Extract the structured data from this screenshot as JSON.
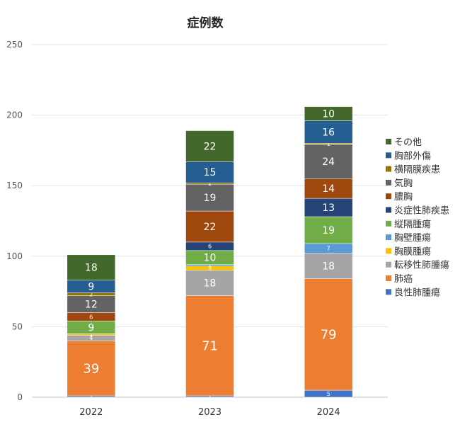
{
  "chart_data": {
    "type": "bar",
    "stacked": true,
    "title": "症例数",
    "categories": [
      "2022",
      "2023",
      "2024"
    ],
    "ylim": [
      0,
      250
    ],
    "yticks": [
      0,
      50,
      100,
      150,
      200,
      250
    ],
    "grid": true,
    "legend_position": "right",
    "series": [
      {
        "name": "良性肺腫瘍",
        "values": [
          1,
          1,
          5
        ],
        "color": "#4472c4"
      },
      {
        "name": "肺癌",
        "values": [
          39,
          71,
          79
        ],
        "color": "#ed7d31"
      },
      {
        "name": "転移性肺腫瘍",
        "values": [
          4,
          18,
          18
        ],
        "color": "#a5a5a5"
      },
      {
        "name": "胸膜腫瘍",
        "values": [
          1,
          3,
          0
        ],
        "color": "#ffc000"
      },
      {
        "name": "胸壁腫瘍",
        "values": [
          0,
          1,
          7
        ],
        "color": "#5b9bd5"
      },
      {
        "name": "縦隔腫瘍",
        "values": [
          9,
          10,
          19
        ],
        "color": "#70ad47"
      },
      {
        "name": "炎症性肺疾患",
        "values": [
          0,
          6,
          13
        ],
        "color": "#264478"
      },
      {
        "name": "膿胸",
        "values": [
          6,
          22,
          14
        ],
        "color": "#9e480e"
      },
      {
        "name": "気胸",
        "values": [
          12,
          19,
          24
        ],
        "color": "#636363"
      },
      {
        "name": "横隔膜疾患",
        "values": [
          2,
          1,
          1
        ],
        "color": "#997300"
      },
      {
        "name": "胸部外傷",
        "values": [
          9,
          15,
          16
        ],
        "color": "#255e91"
      },
      {
        "name": "その他",
        "values": [
          18,
          22,
          10
        ],
        "color": "#43682b"
      }
    ]
  }
}
